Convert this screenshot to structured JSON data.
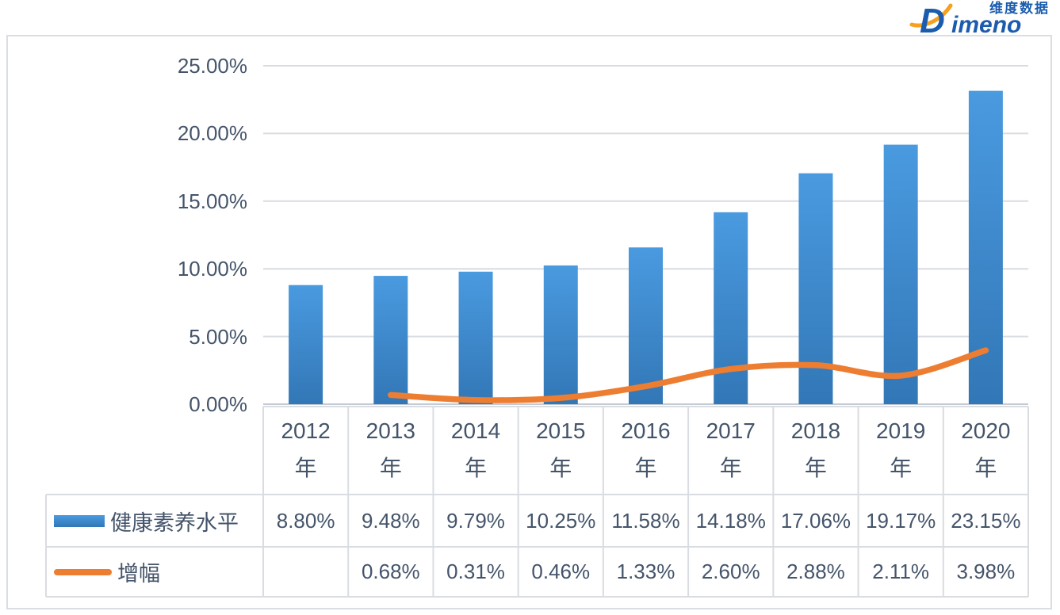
{
  "logo": {
    "d": "D",
    "rest": "imeno",
    "cn": "维度数据"
  },
  "colors": {
    "bar_top": "#4A9AE0",
    "bar_bottom": "#3277B6",
    "line": "#ED7D31",
    "text": "#44546A",
    "grid": "#D9DCE1",
    "axis": "#C5CBD4",
    "logo_blue": "#1B5CAE",
    "logo_orange": "#F6A01E"
  },
  "chart_data": {
    "type": "bar",
    "combo": "bar+line",
    "categories": [
      "2012",
      "2013",
      "2014",
      "2015",
      "2016",
      "2017",
      "2018",
      "2019",
      "2020"
    ],
    "category_unit": "年",
    "series": [
      {
        "name": "健康素养水平",
        "type": "bar",
        "values": [
          8.8,
          9.48,
          9.79,
          10.25,
          11.58,
          14.18,
          17.06,
          19.17,
          23.15
        ]
      },
      {
        "name": "增幅",
        "type": "line",
        "values": [
          null,
          0.68,
          0.31,
          0.46,
          1.33,
          2.6,
          2.88,
          2.11,
          3.98
        ]
      }
    ],
    "title": "",
    "xlabel": "",
    "ylabel": "",
    "y_axis": {
      "min": 0,
      "max": 25,
      "step": 5,
      "tick_labels": [
        "0.00%",
        "5.00%",
        "10.00%",
        "15.00%",
        "20.00%",
        "25.00%"
      ]
    },
    "grid": true,
    "legend_position": "data-table-left",
    "table_row_values": [
      [
        "8.80%",
        "9.48%",
        "9.79%",
        "10.25%",
        "11.58%",
        "14.18%",
        "17.06%",
        "19.17%",
        "23.15%"
      ],
      [
        "",
        "0.68%",
        "0.31%",
        "0.46%",
        "1.33%",
        "2.60%",
        "2.88%",
        "2.11%",
        "3.98%"
      ]
    ]
  }
}
